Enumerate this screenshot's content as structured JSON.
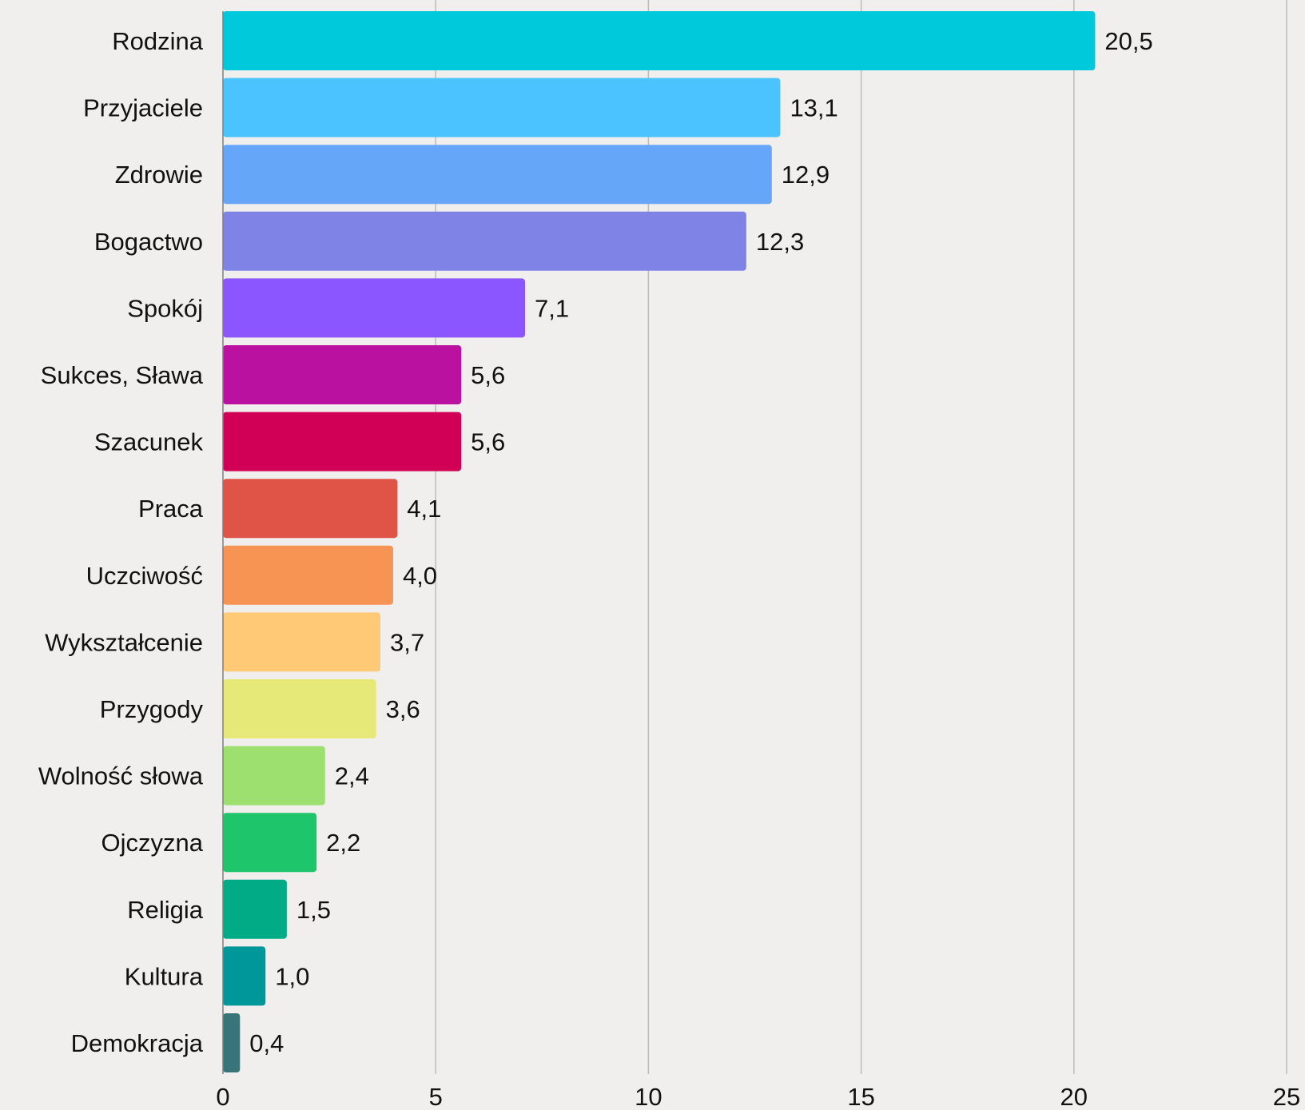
{
  "chart_data": {
    "type": "bar",
    "orientation": "horizontal",
    "title": "",
    "xlabel": "",
    "ylabel": "",
    "xlim": [
      0,
      25
    ],
    "ticks": [
      0,
      5,
      10,
      15,
      20,
      25
    ],
    "tick_labels": [
      "0",
      "5",
      "10",
      "15",
      "20",
      "25"
    ],
    "grid": true,
    "legend": "none",
    "categories": [
      "Rodzina",
      "Przyjaciele",
      "Zdrowie",
      "Bogactwo",
      "Spokój",
      "Sukces, Sława",
      "Szacunek",
      "Praca",
      "Uczciwość",
      "Wykształcenie",
      "Przygody",
      "Wolność słowa",
      "Ojczyzna",
      "Religia",
      "Kultura",
      "Demokracja"
    ],
    "values": [
      20.5,
      13.1,
      12.9,
      12.3,
      7.1,
      5.6,
      5.6,
      4.1,
      4.0,
      3.7,
      3.6,
      2.4,
      2.2,
      1.5,
      1.0,
      0.4
    ],
    "value_labels": [
      "20,5",
      "13,1",
      "12,9",
      "12,3",
      "7,1",
      "5,6",
      "5,6",
      "4,1",
      "4,0",
      "3,7",
      "3,6",
      "2,4",
      "2,2",
      "1,5",
      "1,0",
      "0,4"
    ],
    "colors": [
      "#00c9db",
      "#4ac3ff",
      "#66a6f9",
      "#7f83e6",
      "#8b55ff",
      "#bb11a1",
      "#d10056",
      "#e05347",
      "#f79453",
      "#ffc976",
      "#e6e878",
      "#9de06f",
      "#1ec56b",
      "#00ab86",
      "#00979b",
      "#377578"
    ]
  }
}
